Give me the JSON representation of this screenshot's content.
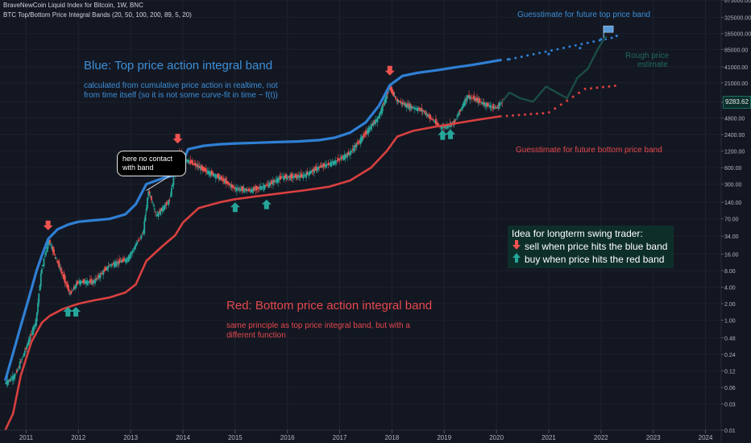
{
  "header": {
    "title": "BraveNewCoin Liquid Index for Bitcoin, 1W, BNC",
    "indicator": "BTC Top/Bottom Price Integral Bands (20, 50, 100, 200, 89, 5, 20)"
  },
  "annotations": {
    "blue_title": "Blue: Top price action integral band",
    "blue_desc_1": "calculated from cumulative price action in realtime, not",
    "blue_desc_2": "from time itself (so it is not some curve-fit in time ~ f(t))",
    "red_title": "Red: Bottom price action integral band",
    "red_desc_1": "same principle as top price integral band, but with a",
    "red_desc_2": "different function",
    "future_top": "Guesstimate for future top price band",
    "future_bottom": "Guesstimate for future bottom price band",
    "rough_1": "Rough price",
    "rough_2": "estimate",
    "callout_1": "here no contact",
    "callout_2": "with band",
    "idea_title": "Idea for longterm swing trader:",
    "idea_sell": "sell when price hits the blue band",
    "idea_buy": "buy when price hits the red band"
  },
  "price_tag": "9283.62",
  "colors": {
    "background": "#131722",
    "top_band": "#2f7fd4",
    "bottom_band": "#d9403f",
    "candle_up": "#26a69a",
    "candle_down": "#ef5350",
    "sell_arrow": "#ef5350",
    "buy_arrow": "#26a69a",
    "idea_box": "#0e2e2a"
  },
  "chart_data": {
    "type": "line",
    "y_scale": "log",
    "ylim": [
      0.01,
      675000
    ],
    "xlim": [
      2010.5,
      2024.3
    ],
    "x_ticks": [
      "2011",
      "2012",
      "2013",
      "2014",
      "2015",
      "2016",
      "2017",
      "2018",
      "2019",
      "2020",
      "2021",
      "2022",
      "2023",
      "2024"
    ],
    "y_ticks": [
      "675000.00",
      "325000.00",
      "165000.00",
      "85000.00",
      "41000.00",
      "21000.00",
      "9283.62",
      "4800.00",
      "2400.00",
      "1200.00",
      "600.00",
      "300.00",
      "140.00",
      "70.00",
      "34.00",
      "16.00",
      "8.00",
      "4.00",
      "2.00",
      "1.00",
      "0.48",
      "0.24",
      "0.12",
      "0.06",
      "0.03",
      "0.01"
    ],
    "series": [
      {
        "x": [
          2010.6,
          2010.75,
          2010.9,
          2011.05,
          2011.2,
          2011.3,
          2011.42,
          2011.6,
          2011.8,
          2012.0,
          2012.3,
          2012.6,
          2012.9,
          2013.1,
          2013.3,
          2013.6,
          2013.9,
          2014.1,
          2014.4,
          2014.7,
          2015.0,
          2015.4,
          2015.8,
          2016.2,
          2016.6,
          2016.9,
          2017.2,
          2017.5,
          2017.75,
          2017.96,
          2018.2,
          2018.5,
          2018.9,
          2019.2,
          2019.5,
          2019.8,
          2020.1
        ],
        "y": [
          0.08,
          0.25,
          0.8,
          2.5,
          8,
          15,
          30,
          45,
          55,
          62,
          66,
          70,
          85,
          130,
          300,
          380,
          450,
          1300,
          1500,
          1600,
          1650,
          1700,
          1750,
          1800,
          1900,
          2100,
          2600,
          4000,
          8000,
          19000,
          28000,
          32000,
          36000,
          40000,
          44000,
          49000,
          55000
        ]
      },
      {
        "x": [
          2010.6,
          2010.75,
          2010.9,
          2011.1,
          2011.3,
          2011.45,
          2011.7,
          2012.0,
          2012.3,
          2012.6,
          2012.9,
          2013.1,
          2013.3,
          2013.6,
          2013.85,
          2014.0,
          2014.3,
          2014.7,
          2015.0,
          2015.4,
          2015.8,
          2016.3,
          2016.8,
          2017.2,
          2017.6,
          2017.9,
          2018.1,
          2018.4,
          2018.8,
          2019.2,
          2019.6,
          2020.1
        ],
        "y": [
          0.01,
          0.02,
          0.1,
          0.4,
          0.9,
          1.2,
          1.6,
          2.0,
          2.3,
          2.6,
          3.2,
          4.5,
          12,
          22,
          35,
          60,
          110,
          140,
          160,
          180,
          200,
          230,
          270,
          350,
          600,
          1200,
          2200,
          2800,
          3300,
          3800,
          4400,
          5200
        ]
      },
      {
        "x": [
          2010.6,
          2010.8,
          2011.0,
          2011.2,
          2011.3,
          2011.44,
          2011.6,
          2011.85,
          2012.0,
          2012.3,
          2012.6,
          2012.95,
          2013.25,
          2013.35,
          2013.5,
          2013.75,
          2013.92,
          2014.1,
          2014.4,
          2014.7,
          2015.0,
          2015.3,
          2015.6,
          2015.9,
          2016.3,
          2016.6,
          2016.9,
          2017.2,
          2017.5,
          2017.75,
          2017.96,
          2018.1,
          2018.3,
          2018.6,
          2018.9,
          2018.97,
          2019.2,
          2019.45,
          2019.6,
          2019.8,
          2020.0,
          2020.1
        ],
        "y": [
          0.07,
          0.1,
          0.3,
          1.0,
          8,
          29,
          12,
          3,
          5,
          5,
          10,
          13,
          40,
          230,
          80,
          150,
          1100,
          800,
          550,
          400,
          250,
          230,
          280,
          400,
          420,
          600,
          750,
          1100,
          2500,
          5000,
          17000,
          10000,
          8000,
          6500,
          3500,
          3200,
          4000,
          12000,
          10500,
          8500,
          7200,
          9283
        ]
      }
    ]
  }
}
